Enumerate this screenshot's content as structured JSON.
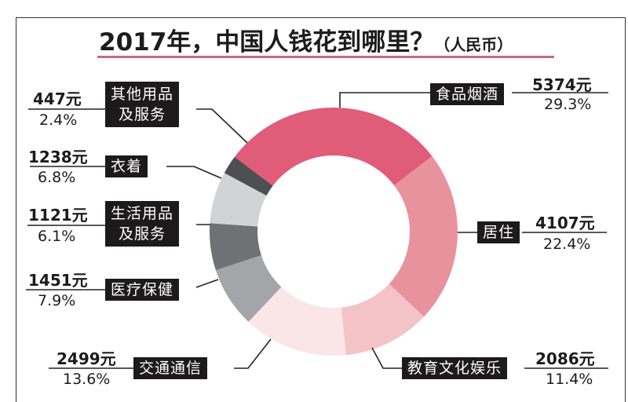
{
  "title": {
    "main": "2017年，中国人钱花到哪里？",
    "unit": "（人民币）"
  },
  "colors": {
    "accent_underline": "#c76a83",
    "label_bg": "#1c1a1a"
  },
  "chart_data": {
    "type": "pie",
    "subtype": "donut",
    "title": "2017年，中国人钱花到哪里？（人民币）",
    "unit": "元",
    "categories": [
      "食品烟酒",
      "居住",
      "教育文化娱乐",
      "交通通信",
      "医疗保健",
      "生活用品及服务",
      "衣着",
      "其他用品及服务"
    ],
    "values": [
      5374,
      4107,
      2086,
      2499,
      1451,
      1121,
      1238,
      447
    ],
    "percent": [
      29.3,
      22.4,
      11.4,
      13.6,
      7.9,
      6.1,
      6.8,
      2.4
    ],
    "colors": [
      "#e05c78",
      "#e8929e",
      "#f3c3c8",
      "#fae6e7",
      "#a4a5a9",
      "#707175",
      "#d2d3d5",
      "#4e4f51"
    ],
    "legend_position": "callout labels"
  },
  "labels": {
    "food": {
      "name": "食品烟酒",
      "value": "5374元",
      "pct": "29.3%"
    },
    "housing": {
      "name": "居住",
      "value": "4107元",
      "pct": "22.4%"
    },
    "education": {
      "name": "教育文化娱乐",
      "value": "2086元",
      "pct": "11.4%"
    },
    "transport": {
      "name": "交通通信",
      "value": "2499元",
      "pct": "13.6%"
    },
    "medical": {
      "name": "医疗保健",
      "value": "1451元",
      "pct": "7.9%"
    },
    "daily": {
      "name1": "生活用品",
      "name2": "及服务",
      "value": "1121元",
      "pct": "6.1%"
    },
    "clothing": {
      "name": "衣着",
      "value": "1238元",
      "pct": "6.8%"
    },
    "other": {
      "name1": "其他用品",
      "name2": "及服务",
      "value": "447元",
      "pct": "2.4%"
    }
  }
}
